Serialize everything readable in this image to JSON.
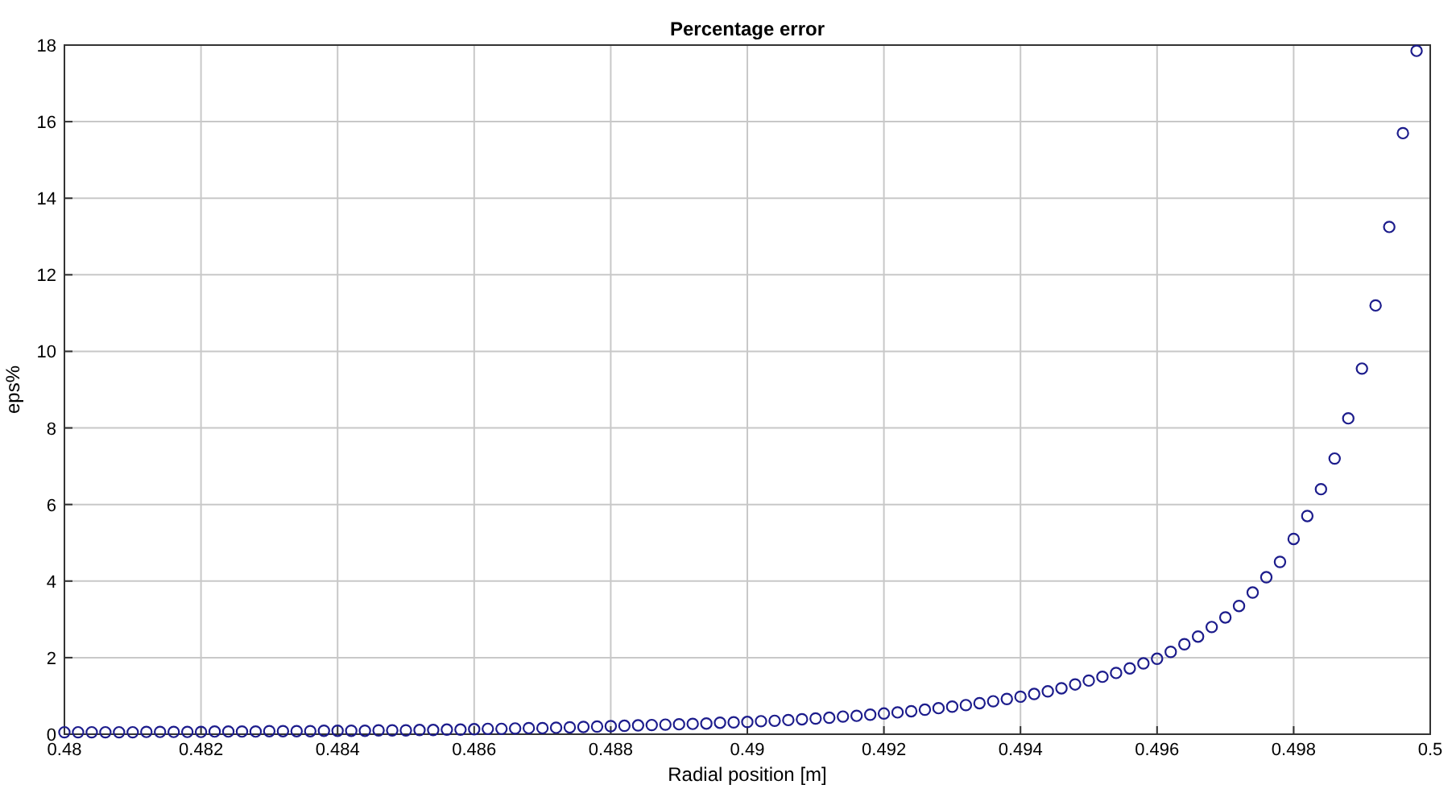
{
  "chart_data": {
    "type": "scatter",
    "title": "Percentage error",
    "xlabel": "Radial position [m]",
    "ylabel": "eps%",
    "x": [
      0.48,
      0.4802,
      0.4804,
      0.4806,
      0.4808,
      0.481,
      0.4812,
      0.4814,
      0.4816,
      0.4818,
      0.482,
      0.4822,
      0.4824,
      0.4826,
      0.4828,
      0.483,
      0.4832,
      0.4834,
      0.4836,
      0.4838,
      0.484,
      0.4842,
      0.4844,
      0.4846,
      0.4848,
      0.485,
      0.4852,
      0.4854,
      0.4856,
      0.4858,
      0.486,
      0.4862,
      0.4864,
      0.4866,
      0.4868,
      0.487,
      0.4872,
      0.4874,
      0.4876,
      0.4878,
      0.488,
      0.4882,
      0.4884,
      0.4886,
      0.4888,
      0.489,
      0.4892,
      0.4894,
      0.4896,
      0.4898,
      0.49,
      0.4902,
      0.4904,
      0.4906,
      0.4908,
      0.491,
      0.4912,
      0.4914,
      0.4916,
      0.4918,
      0.492,
      0.4922,
      0.4924,
      0.4926,
      0.4928,
      0.493,
      0.4932,
      0.4934,
      0.4936,
      0.4938,
      0.494,
      0.4942,
      0.4944,
      0.4946,
      0.4948,
      0.495,
      0.4952,
      0.4954,
      0.4956,
      0.4958,
      0.496,
      0.4962,
      0.4964,
      0.4966,
      0.4968,
      0.497,
      0.4972,
      0.4974,
      0.4976,
      0.4978,
      0.498,
      0.4982,
      0.4984,
      0.4986,
      0.4988,
      0.499,
      0.4992,
      0.4994,
      0.4996,
      0.4998
    ],
    "series": [
      {
        "color": "#1c1c8c",
        "values": [
          0.05,
          0.05,
          0.05,
          0.05,
          0.05,
          0.05,
          0.06,
          0.06,
          0.06,
          0.06,
          0.06,
          0.07,
          0.07,
          0.07,
          0.07,
          0.08,
          0.08,
          0.08,
          0.08,
          0.09,
          0.09,
          0.09,
          0.09,
          0.1,
          0.1,
          0.1,
          0.11,
          0.11,
          0.12,
          0.12,
          0.13,
          0.14,
          0.14,
          0.15,
          0.16,
          0.16,
          0.17,
          0.18,
          0.19,
          0.2,
          0.21,
          0.22,
          0.23,
          0.24,
          0.25,
          0.26,
          0.27,
          0.28,
          0.3,
          0.31,
          0.32,
          0.34,
          0.35,
          0.37,
          0.39,
          0.41,
          0.43,
          0.46,
          0.48,
          0.51,
          0.54,
          0.57,
          0.6,
          0.64,
          0.68,
          0.72,
          0.76,
          0.81,
          0.86,
          0.92,
          0.98,
          1.05,
          1.12,
          1.2,
          1.3,
          1.4,
          1.5,
          1.6,
          1.72,
          1.85,
          1.97,
          2.15,
          2.35,
          2.55,
          2.8,
          3.05,
          3.35,
          3.7,
          4.1,
          4.5,
          5.1,
          5.7,
          6.4,
          7.2,
          8.25,
          9.55,
          11.2,
          13.25,
          15.7,
          17.85
        ]
      }
    ],
    "xlim": [
      0.48,
      0.5
    ],
    "xticks": [
      0.48,
      0.482,
      0.484,
      0.486,
      0.488,
      0.49,
      0.492,
      0.494,
      0.496,
      0.498,
      0.5
    ],
    "ylim": [
      0,
      18
    ],
    "yticks": [
      0,
      2,
      4,
      6,
      8,
      10,
      12,
      14,
      16,
      18
    ],
    "grid": true,
    "marker": "circle"
  }
}
